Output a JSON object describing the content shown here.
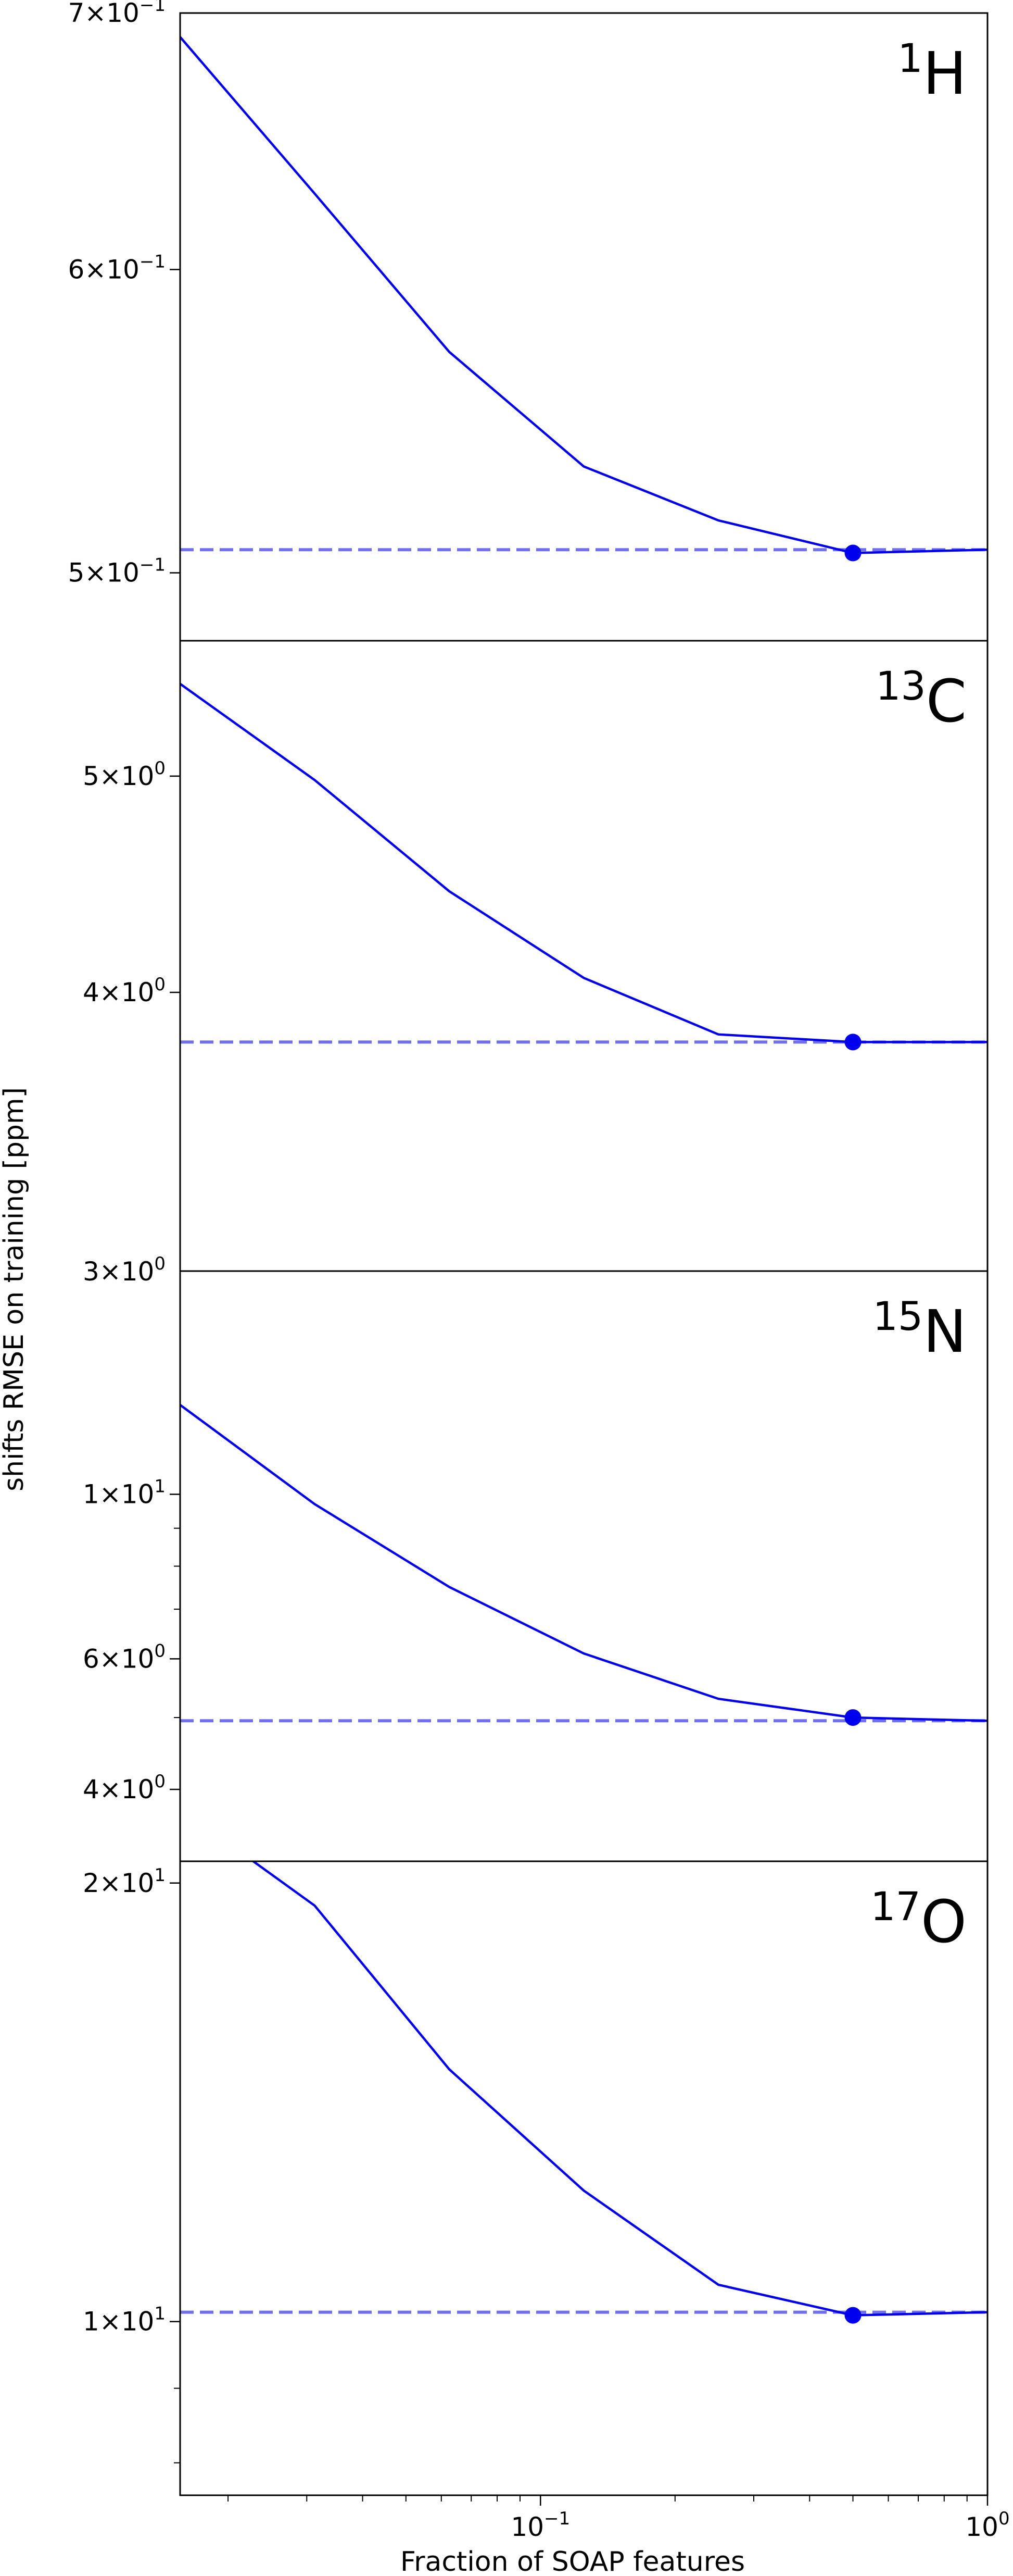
{
  "chart_data": [
    {
      "type": "line",
      "panel_label": {
        "mass": "1",
        "element": "H"
      },
      "yscale": "log",
      "ylim": [
        0.48,
        0.7
      ],
      "yticks": [
        {
          "value": 0.5,
          "mantissa": "5",
          "exponent": "−1"
        },
        {
          "value": 0.6,
          "mantissa": "6",
          "exponent": "−1"
        },
        {
          "value": 0.7,
          "mantissa": "7",
          "exponent": "−1"
        }
      ],
      "series": [
        {
          "x": [
            0.015625,
            0.03125,
            0.0625,
            0.125,
            0.25,
            0.5,
            1.0
          ],
          "y": [
            0.69,
            0.628,
            0.571,
            0.533,
            0.516,
            0.506,
            0.507
          ]
        }
      ],
      "reference_line": 0.507,
      "highlight_point": {
        "x": 0.5,
        "y": 0.506
      },
      "color": "#0000ee",
      "reference_color": "#7070ee"
    },
    {
      "type": "line",
      "panel_label": {
        "mass": "13",
        "element": "C"
      },
      "yscale": "log",
      "ylim": [
        3.0,
        5.75
      ],
      "yticks": [
        {
          "value": 3,
          "mantissa": "3",
          "exponent": "0",
          "placement": "bottom-edge"
        },
        {
          "value": 4,
          "mantissa": "4",
          "exponent": "0"
        },
        {
          "value": 5,
          "mantissa": "5",
          "exponent": "0"
        }
      ],
      "series": [
        {
          "x": [
            0.015625,
            0.03125,
            0.0625,
            0.125,
            0.25,
            0.5,
            1.0
          ],
          "y": [
            5.5,
            4.98,
            4.44,
            4.06,
            3.83,
            3.8,
            3.8
          ]
        }
      ],
      "reference_line": 3.8,
      "highlight_point": {
        "x": 0.5,
        "y": 3.8
      },
      "color": "#0000ee",
      "reference_color": "#7070ee"
    },
    {
      "type": "line",
      "panel_label": {
        "mass": "15",
        "element": "N"
      },
      "yscale": "log",
      "ylim": [
        3.2,
        20.0
      ],
      "yticks": [
        {
          "value": 4,
          "mantissa": "4",
          "exponent": "0"
        },
        {
          "value": 6,
          "mantissa": "6",
          "exponent": "0"
        },
        {
          "value": 10,
          "mantissa": "1",
          "exponent": "1"
        }
      ],
      "series": [
        {
          "x": [
            0.015625,
            0.03125,
            0.0625,
            0.125,
            0.25,
            0.5,
            1.0
          ],
          "y": [
            13.2,
            9.7,
            7.5,
            6.1,
            5.3,
            5.0,
            4.95
          ]
        }
      ],
      "reference_line": 4.95,
      "highlight_point": {
        "x": 0.5,
        "y": 5.0
      },
      "color": "#0000ee",
      "reference_color": "#7070ee"
    },
    {
      "type": "line",
      "panel_label": {
        "mass": "17",
        "element": "O"
      },
      "yscale": "log",
      "ylim": [
        7.6,
        20.7
      ],
      "yticks": [
        {
          "value": 10,
          "mantissa": "1",
          "exponent": "1"
        },
        {
          "value": 20,
          "mantissa": "2",
          "exponent": "1"
        }
      ],
      "series": [
        {
          "x": [
            0.015625,
            0.03125,
            0.0625,
            0.125,
            0.25,
            0.5,
            1.0
          ],
          "y": [
            22.5,
            19.3,
            14.9,
            12.3,
            10.6,
            10.1,
            10.15
          ]
        }
      ],
      "reference_line": 10.15,
      "highlight_point": {
        "x": 0.5,
        "y": 10.1
      },
      "color": "#0000ee",
      "reference_color": "#7070ee"
    }
  ],
  "xaxis": {
    "scale": "log",
    "xlim": [
      0.015625,
      1.0
    ],
    "label": "Fraction of SOAP features",
    "ticks": [
      {
        "value": 0.1,
        "mantissa": "10",
        "exponent": "−1"
      },
      {
        "value": 1.0,
        "mantissa": "10",
        "exponent": "0"
      }
    ]
  },
  "ylabel": "shifts RMSE on training [ppm]"
}
